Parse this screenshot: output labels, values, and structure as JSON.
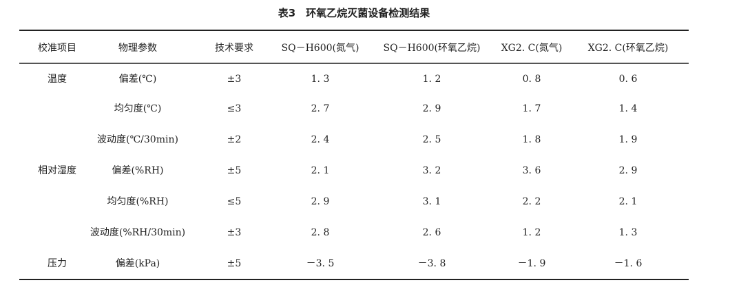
{
  "title": "表3　环氧乙烷灭菌设备检测结果",
  "table": {
    "headers": [
      "校准项目",
      "物理参数",
      "技术要求",
      "SQ－H600(氮气)",
      "SQ－H600(环氧乙烷)",
      "XG2. C(氮气)",
      "XG2. C(环氧乙烷)"
    ],
    "rows": [
      [
        "温度",
        "偏差(℃)",
        "±3",
        "1. 3",
        "1. 2",
        "0. 8",
        "0. 6"
      ],
      [
        "",
        "均匀度(℃)",
        "≤3",
        "2. 7",
        "2. 9",
        "1. 7",
        "1. 4"
      ],
      [
        "",
        "波动度(℃/30min)",
        "±2",
        "2. 4",
        "2. 5",
        "1. 8",
        "1. 9"
      ],
      [
        "相对湿度",
        "偏差(%RH)",
        "±5",
        "2. 1",
        "3. 2",
        "3. 6",
        "2. 9"
      ],
      [
        "",
        "均匀度(%RH)",
        "≤5",
        "2. 9",
        "3. 1",
        "2. 2",
        "2. 1"
      ],
      [
        "",
        "波动度(%RH/30min)",
        "±3",
        "2. 8",
        "2. 6",
        "1. 2",
        "1. 3"
      ],
      [
        "压力",
        "偏差(kPa)",
        "±5",
        "－3. 5",
        "－3. 8",
        "－1. 9",
        "－1. 6"
      ]
    ]
  }
}
